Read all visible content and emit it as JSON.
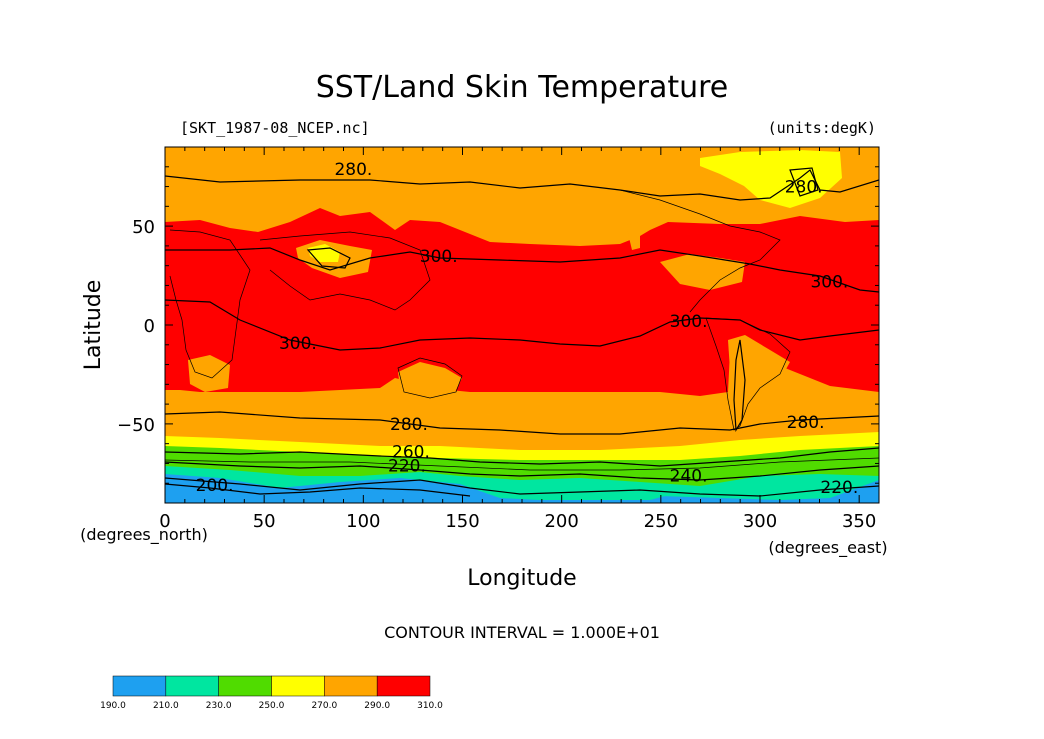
{
  "chart_data": {
    "type": "heatmap",
    "title": "SST/Land Skin Temperature",
    "file_label": "[SKT_1987-08_NCEP.nc]",
    "units_label": "(units:degK)",
    "xlabel": "Longitude",
    "ylabel": "Latitude",
    "x_units": "(degrees_east)",
    "y_units": "(degrees_north)",
    "xlim": [
      0,
      360
    ],
    "ylim": [
      -90,
      90
    ],
    "x_ticks": [
      0,
      50,
      100,
      150,
      200,
      250,
      300,
      350
    ],
    "y_ticks": [
      -50,
      0,
      50
    ],
    "contour_interval_text": "CONTOUR INTERVAL = 1.000E+01",
    "colorbar": {
      "levels": [
        "190.0",
        "210.0",
        "230.0",
        "250.0",
        "270.0",
        "290.0",
        "310.0"
      ],
      "colors": [
        "#1ea0f0",
        "#00e6a0",
        "#50dc00",
        "#ffff00",
        "#ffa500",
        "#ff0000"
      ]
    },
    "contour_labels": [
      {
        "text": "280.",
        "lon": 95,
        "lat": 79
      },
      {
        "text": "280.",
        "lon": 322,
        "lat": 70
      },
      {
        "text": "300.",
        "lon": 138,
        "lat": 35
      },
      {
        "text": "300.",
        "lon": 335,
        "lat": 22
      },
      {
        "text": "300.",
        "lon": 264,
        "lat": 2
      },
      {
        "text": "300.",
        "lon": 67,
        "lat": -9
      },
      {
        "text": "280.",
        "lon": 123,
        "lat": -50
      },
      {
        "text": "280.",
        "lon": 323,
        "lat": -49
      },
      {
        "text": "260.",
        "lon": 124,
        "lat": -64
      },
      {
        "text": "220.",
        "lon": 122,
        "lat": -71
      },
      {
        "text": "240.",
        "lon": 264,
        "lat": -76
      },
      {
        "text": "220.",
        "lon": 340,
        "lat": -82
      },
      {
        "text": "200.",
        "lon": 25,
        "lat": -81
      }
    ]
  }
}
